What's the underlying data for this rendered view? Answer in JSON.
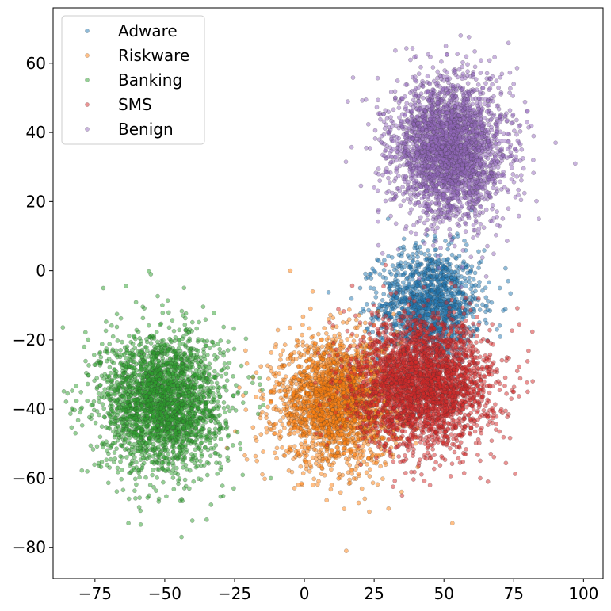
{
  "chart_data": {
    "type": "scatter",
    "title": "",
    "xlabel": "",
    "ylabel": "",
    "xlim": [
      -90,
      107
    ],
    "ylim": [
      -89,
      76
    ],
    "x_ticks": [
      -75,
      -50,
      -25,
      0,
      25,
      50,
      75,
      100
    ],
    "y_ticks": [
      -80,
      -60,
      -40,
      -20,
      0,
      20,
      40,
      60
    ],
    "x_tick_labels": [
      "−75",
      "−50",
      "−25",
      "0",
      "25",
      "50",
      "75",
      "100"
    ],
    "y_tick_labels": [
      "−80",
      "−60",
      "−40",
      "−20",
      "0",
      "20",
      "40",
      "60"
    ],
    "grid": false,
    "legend_position": "top-left",
    "series": [
      {
        "name": "Adware",
        "color": "#1f77b4",
        "cluster_center": [
          45,
          -10
        ],
        "cluster_spread": [
          9,
          8
        ],
        "point_count": 1400,
        "sample_outliers": [
          [
            20,
            -5
          ],
          [
            25,
            0
          ],
          [
            35,
            5
          ],
          [
            40,
            8
          ],
          [
            55,
            10
          ],
          [
            70,
            -5
          ],
          [
            73,
            -3
          ],
          [
            69,
            -17
          ],
          [
            30,
            15
          ]
        ]
      },
      {
        "name": "Riskware",
        "color": "#ff7f0e",
        "cluster_center": [
          12,
          -38
        ],
        "cluster_spread": [
          11,
          9
        ],
        "point_count": 2400,
        "sample_outliers": [
          [
            -5,
            0
          ],
          [
            -9,
            -28
          ],
          [
            -12,
            -35
          ],
          [
            -17,
            -55
          ],
          [
            15,
            -81
          ],
          [
            53,
            -73
          ],
          [
            3,
            -6
          ]
        ]
      },
      {
        "name": "Banking",
        "color": "#2ca02c",
        "cluster_center": [
          -51,
          -38
        ],
        "cluster_spread": [
          11,
          10
        ],
        "point_count": 2600,
        "sample_outliers": [
          [
            -72,
            -5
          ],
          [
            -55,
            -1
          ],
          [
            -80,
            -40
          ],
          [
            -82,
            -47
          ],
          [
            -44,
            -77
          ],
          [
            -35,
            -72
          ],
          [
            -63,
            -73
          ],
          [
            -23,
            -50
          ],
          [
            -12,
            -60
          ]
        ]
      },
      {
        "name": "SMS",
        "color": "#d62728",
        "cluster_center": [
          43,
          -33
        ],
        "cluster_spread": [
          12,
          9
        ],
        "point_count": 3000,
        "sample_outliers": [
          [
            25,
            -10
          ],
          [
            20,
            -15
          ],
          [
            80,
            -35
          ],
          [
            75,
            -35
          ],
          [
            63,
            -60
          ],
          [
            35,
            -65
          ],
          [
            45,
            -62
          ],
          [
            20,
            -30
          ]
        ]
      },
      {
        "name": "Benign",
        "color": "#9467bd",
        "cluster_center": [
          52,
          35
        ],
        "cluster_spread": [
          10,
          10
        ],
        "point_count": 3000,
        "sample_outliers": [
          [
            56,
            68
          ],
          [
            97,
            31
          ],
          [
            90,
            37
          ],
          [
            82,
            32
          ],
          [
            84,
            15
          ],
          [
            25,
            24
          ],
          [
            28,
            5
          ],
          [
            40,
            62
          ],
          [
            38,
            61
          ]
        ]
      }
    ]
  }
}
